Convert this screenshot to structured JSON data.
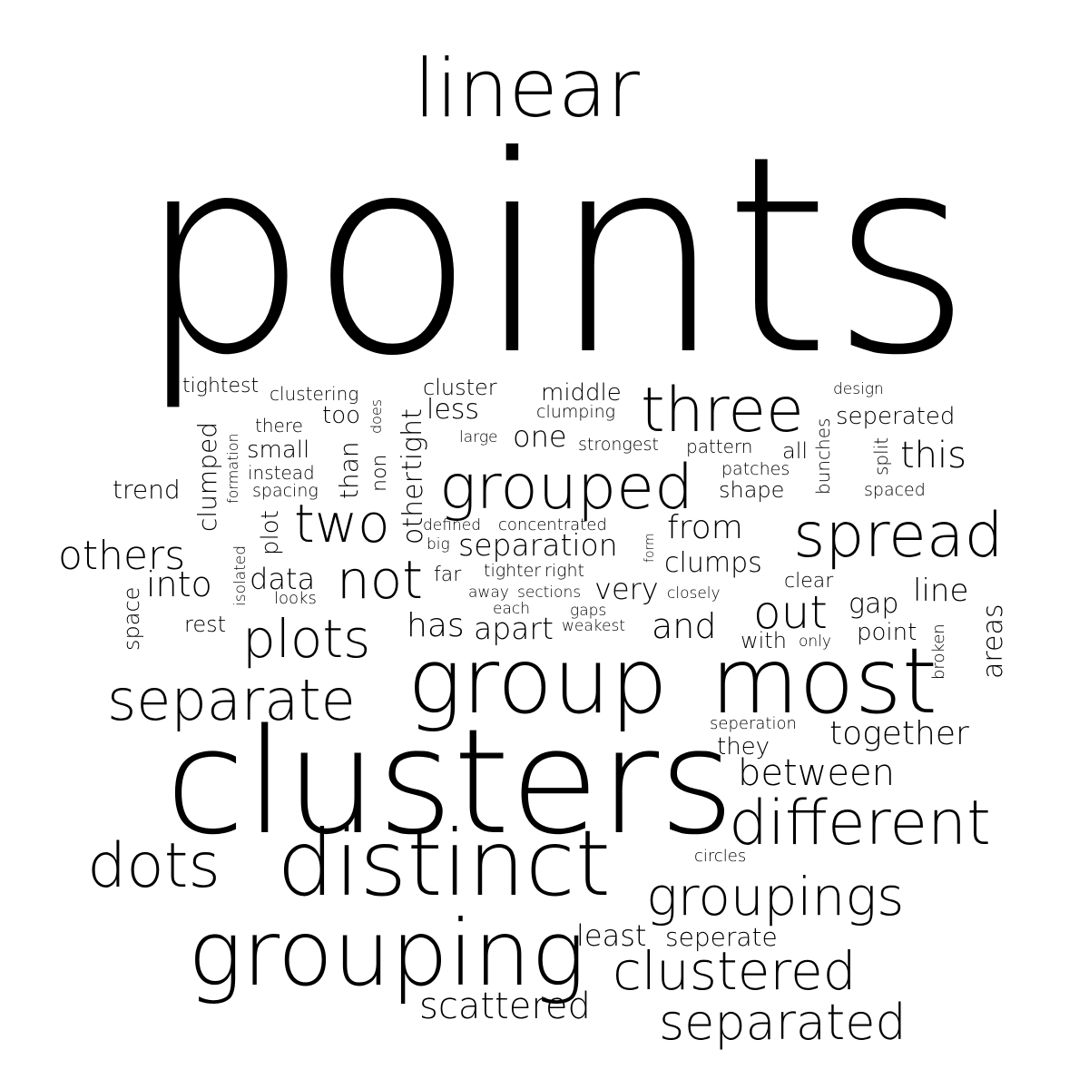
{
  "words": [
    {
      "text": "points"
    },
    {
      "text": "linear"
    },
    {
      "text": "clusters"
    },
    {
      "text": "group"
    },
    {
      "text": "most"
    },
    {
      "text": "distinct"
    },
    {
      "text": "grouping"
    },
    {
      "text": "grouped"
    },
    {
      "text": "spread"
    },
    {
      "text": "three"
    },
    {
      "text": "separate"
    },
    {
      "text": "different"
    },
    {
      "text": "groupings"
    },
    {
      "text": "clustered"
    },
    {
      "text": "separated"
    },
    {
      "text": "dots"
    },
    {
      "text": "plots"
    },
    {
      "text": "two"
    },
    {
      "text": "not"
    },
    {
      "text": "out"
    },
    {
      "text": "others"
    },
    {
      "text": "between"
    },
    {
      "text": "scattered"
    },
    {
      "text": "together"
    },
    {
      "text": "this"
    },
    {
      "text": "from"
    },
    {
      "text": "separation"
    },
    {
      "text": "into"
    },
    {
      "text": "and"
    },
    {
      "text": "apart"
    },
    {
      "text": "has"
    },
    {
      "text": "clumps"
    },
    {
      "text": "line"
    },
    {
      "text": "least"
    },
    {
      "text": "seperate"
    },
    {
      "text": "very"
    },
    {
      "text": "one"
    },
    {
      "text": "data"
    },
    {
      "text": "other"
    },
    {
      "text": "tight"
    },
    {
      "text": "less"
    },
    {
      "text": "middle"
    },
    {
      "text": "seperated"
    },
    {
      "text": "gap"
    },
    {
      "text": "point"
    },
    {
      "text": "areas"
    },
    {
      "text": "clumped"
    },
    {
      "text": "plot"
    },
    {
      "text": "than"
    },
    {
      "text": "small"
    },
    {
      "text": "trend"
    },
    {
      "text": "cluster"
    },
    {
      "text": "too"
    },
    {
      "text": "shape"
    },
    {
      "text": "tightest"
    },
    {
      "text": "clustering"
    },
    {
      "text": "there"
    },
    {
      "text": "instead"
    },
    {
      "text": "spacing"
    },
    {
      "text": "rest"
    },
    {
      "text": "with"
    },
    {
      "text": "they"
    },
    {
      "text": "pattern"
    },
    {
      "text": "all"
    },
    {
      "text": "bunches"
    },
    {
      "text": "split"
    },
    {
      "text": "clear"
    },
    {
      "text": "looks"
    },
    {
      "text": "space"
    },
    {
      "text": "far"
    },
    {
      "text": "patches"
    },
    {
      "text": "spaced"
    },
    {
      "text": "clumping"
    },
    {
      "text": "strongest"
    },
    {
      "text": "large"
    },
    {
      "text": "non"
    },
    {
      "text": "does"
    },
    {
      "text": "formation"
    },
    {
      "text": "isolated"
    },
    {
      "text": "defined"
    },
    {
      "text": "concentrated"
    },
    {
      "text": "big"
    },
    {
      "text": "form"
    },
    {
      "text": "tighter"
    },
    {
      "text": "right"
    },
    {
      "text": "away"
    },
    {
      "text": "sections"
    },
    {
      "text": "each"
    },
    {
      "text": "gaps"
    },
    {
      "text": "weakest"
    },
    {
      "text": "closely"
    },
    {
      "text": "only"
    },
    {
      "text": "broken"
    },
    {
      "text": "seperation"
    },
    {
      "text": "circles"
    },
    {
      "text": "design"
    }
  ]
}
